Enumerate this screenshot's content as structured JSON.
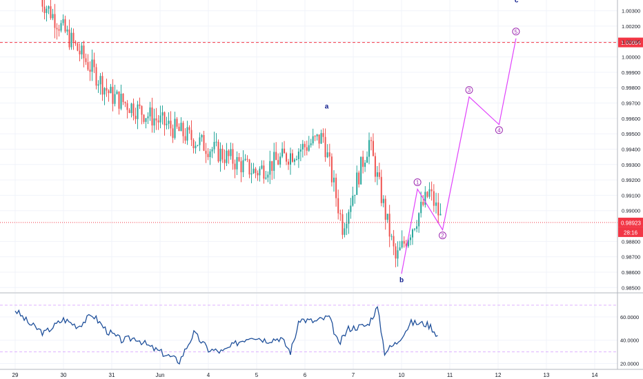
{
  "chart_data": {
    "type": "candlestick",
    "instrument_scale": "price",
    "price_axis": {
      "range": [
        0.9847,
        1.0037
      ],
      "ticks": [
        "1.00300",
        "1.00200",
        "1.00100",
        "1.00000",
        "0.99900",
        "0.99800",
        "0.99700",
        "0.99600",
        "0.99500",
        "0.99400",
        "0.99300",
        "0.99200",
        "0.99100",
        "0.99000",
        "0.98800",
        "0.98700",
        "0.98600",
        "0.98500"
      ]
    },
    "time_axis": {
      "labels": [
        "29",
        "30",
        "31",
        "Jun",
        "4",
        "5",
        "6",
        "7",
        "10",
        "11",
        "12",
        "13",
        "14"
      ]
    },
    "horizontal_lines": [
      {
        "price": 1.00094,
        "label": "1.00094",
        "style": "dashed",
        "color": "#f23645"
      },
      {
        "price": 0.98923,
        "label": "0.98923",
        "style": "dotted",
        "color": "#f23645"
      }
    ],
    "countdown_label": "28:16",
    "price_segments": [
      {
        "from": [
          0.5,
          1.004
        ],
        "to": [
          2.0,
          0.9975
        ],
        "start_trend": "down"
      },
      {
        "from": [
          2.0,
          0.9975
        ],
        "to": [
          5.0,
          0.9925
        ],
        "start_trend": "down"
      },
      {
        "from": [
          5.0,
          0.9925
        ],
        "to": [
          6.4,
          0.9948
        ],
        "start_trend": "up"
      },
      {
        "from": [
          6.4,
          0.9948
        ],
        "to": [
          6.8,
          0.989
        ],
        "start_trend": "down"
      },
      {
        "from": [
          6.8,
          0.989
        ],
        "to": [
          7.35,
          0.9945
        ],
        "start_trend": "up"
      },
      {
        "from": [
          7.35,
          0.9945
        ],
        "to": [
          7.9,
          0.9868
        ],
        "start_trend": "down"
      },
      {
        "from": [
          7.9,
          0.9868
        ],
        "to": [
          8.6,
          0.9912
        ],
        "start_trend": "up"
      },
      {
        "from": [
          8.6,
          0.9912
        ],
        "to": [
          8.83,
          0.9895
        ],
        "start_trend": "down"
      }
    ],
    "wave_projection": [
      {
        "label": "b",
        "x": 8.0,
        "price": 0.9859
      },
      {
        "label": "1",
        "x": 8.33,
        "price": 0.9914
      },
      {
        "label": "2",
        "x": 8.85,
        "price": 0.98875
      },
      {
        "label": "3",
        "x": 9.4,
        "price": 0.9974
      },
      {
        "label": "4",
        "x": 10.02,
        "price": 0.9956
      },
      {
        "label": "5",
        "x": 10.37,
        "price": 1.0012
      }
    ],
    "wave_labels": [
      {
        "label": "a",
        "x": 6.45,
        "price": 0.99665
      },
      {
        "label": "b",
        "x": 8.0,
        "price": 0.98535
      },
      {
        "label": "c",
        "x": 10.38,
        "price": 1.00355
      }
    ],
    "oscillator": {
      "range": [
        15,
        80
      ],
      "ticks": [
        "60.0000",
        "40.0000",
        "20.0000"
      ],
      "levels": [
        70,
        30
      ],
      "keyframes": [
        [
          0,
          66
        ],
        [
          0.3,
          54
        ],
        [
          0.6,
          46
        ],
        [
          1.0,
          58
        ],
        [
          1.3,
          52
        ],
        [
          1.6,
          62
        ],
        [
          1.9,
          48
        ],
        [
          2.2,
          40
        ],
        [
          2.5,
          42
        ],
        [
          2.8,
          34
        ],
        [
          3.1,
          28
        ],
        [
          3.4,
          22
        ],
        [
          3.7,
          46
        ],
        [
          4.0,
          32
        ],
        [
          4.3,
          30
        ],
        [
          4.6,
          38
        ],
        [
          4.9,
          44
        ],
        [
          5.2,
          40
        ],
        [
          5.5,
          42
        ],
        [
          5.7,
          30
        ],
        [
          5.9,
          58
        ],
        [
          6.2,
          56
        ],
        [
          6.5,
          60
        ],
        [
          6.7,
          36
        ],
        [
          6.9,
          50
        ],
        [
          7.3,
          53
        ],
        [
          7.5,
          68
        ],
        [
          7.65,
          30
        ],
        [
          7.9,
          38
        ],
        [
          8.2,
          55
        ],
        [
          8.5,
          54
        ],
        [
          8.6,
          52
        ],
        [
          8.75,
          44
        ]
      ]
    }
  }
}
